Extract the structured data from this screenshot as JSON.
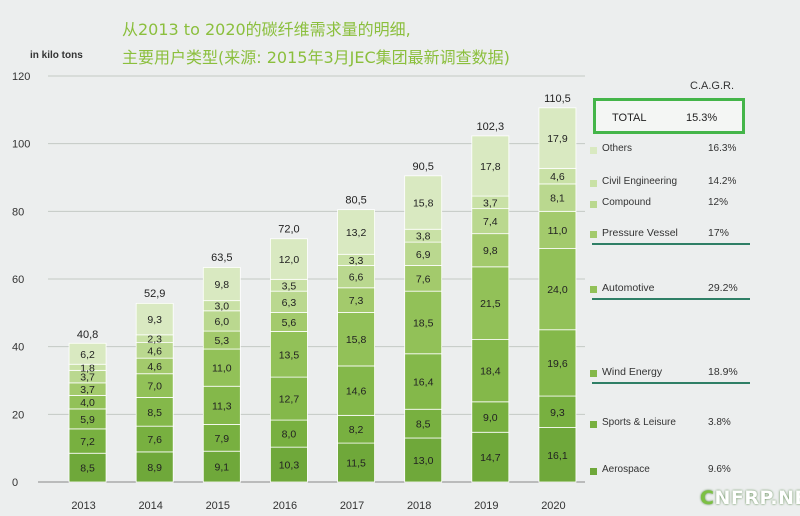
{
  "title_line1": "从2013 to 2020的碳纤维需求量的明细,",
  "title_line2": "主要用户类型(来源: 2015年3月JEC集团最新调查数据)",
  "watermark_text": "CNFRP.NET",
  "chart_data": {
    "type": "bar",
    "stacked": true,
    "ylabel": "in kilo tons",
    "ylim": [
      0,
      120
    ],
    "yticks": [
      0,
      20,
      40,
      60,
      80,
      100,
      120
    ],
    "grid": true,
    "legend_placement": "right",
    "categories": [
      "2013",
      "2014",
      "2015",
      "2016",
      "2017",
      "2018",
      "2019",
      "2020"
    ],
    "totals": [
      "40,8",
      "52,9",
      "63,5",
      "72,0",
      "80,5",
      "90,5",
      "102,3",
      "110,5"
    ],
    "total_values": [
      40.8,
      52.9,
      63.5,
      72.0,
      80.5,
      90.5,
      102.3,
      110.5
    ],
    "cagr_header": "C.A.G.R.",
    "total_row": {
      "name": "TOTAL",
      "cagr": "15.3%"
    },
    "series": [
      {
        "name": "Aerospace",
        "cagr": "9.6%",
        "color": "#6fa83a",
        "values": [
          8.5,
          8.9,
          9.1,
          10.3,
          11.5,
          13.0,
          14.7,
          16.1
        ],
        "labels": [
          "8,5",
          "8,9",
          "9,1",
          "10,3",
          "11,5",
          "13,0",
          "14,7",
          "16,1"
        ]
      },
      {
        "name": "Sports & Leisure",
        "cagr": "3.8%",
        "color": "#78b040",
        "values": [
          7.2,
          7.6,
          7.9,
          8.0,
          8.2,
          8.5,
          9.0,
          9.3
        ],
        "labels": [
          "7,2",
          "7,6",
          "7,9",
          "8,0",
          "8,2",
          "8,5",
          "9,0",
          "9,3"
        ]
      },
      {
        "name": "Wind Energy",
        "cagr": "18.9%",
        "color": "#84b84a",
        "values": [
          5.9,
          8.5,
          11.3,
          12.7,
          14.6,
          16.4,
          18.4,
          19.6
        ],
        "labels": [
          "5,9",
          "8,5",
          "11,3",
          "12,7",
          "14,6",
          "16,4",
          "18,4",
          "19,6"
        ]
      },
      {
        "name": "Automotive",
        "cagr": "29.2%",
        "color": "#92c158",
        "values": [
          4.0,
          7.0,
          11.0,
          13.5,
          15.8,
          18.5,
          21.5,
          24.0
        ],
        "labels": [
          "4,0",
          "7,0",
          "11,0",
          "13,5",
          "15,8",
          "18,5",
          "21,5",
          "24,0"
        ]
      },
      {
        "name": "Pressure Vessel",
        "cagr": "17%",
        "color": "#a3ca6c",
        "values": [
          3.7,
          4.6,
          5.3,
          5.6,
          7.3,
          7.6,
          9.8,
          11.0
        ],
        "labels": [
          "3,7",
          "4,6",
          "5,3",
          "5,6",
          "7,3",
          "7,6",
          "9,8",
          "11,0"
        ]
      },
      {
        "name": "Compound",
        "cagr": "12%",
        "color": "#bad88f",
        "values": [
          3.7,
          4.6,
          6.0,
          6.3,
          6.6,
          6.9,
          7.4,
          8.1
        ],
        "labels": [
          "3,7",
          "4,6",
          "6,0",
          "6,3",
          "6,6",
          "6,9",
          "7,4",
          "8,1"
        ]
      },
      {
        "name": "Civil Engineering",
        "cagr": "14.2%",
        "color": "#c9e1a6",
        "values": [
          1.8,
          2.3,
          3.0,
          3.5,
          3.3,
          3.8,
          3.7,
          4.6
        ],
        "labels": [
          "1,8",
          "2,3",
          "3,0",
          "3,5",
          "3,3",
          "3,8",
          "3,7",
          "4,6"
        ]
      },
      {
        "name": "Others",
        "cagr": "16.3%",
        "color": "#d9e9c1",
        "values": [
          6.2,
          9.3,
          9.8,
          12.0,
          13.2,
          15.8,
          17.8,
          17.9
        ],
        "labels": [
          "6,2",
          "9,3",
          "9,8",
          "12,0",
          "13,2",
          "15,8",
          "17,8",
          "17,9"
        ]
      }
    ]
  }
}
